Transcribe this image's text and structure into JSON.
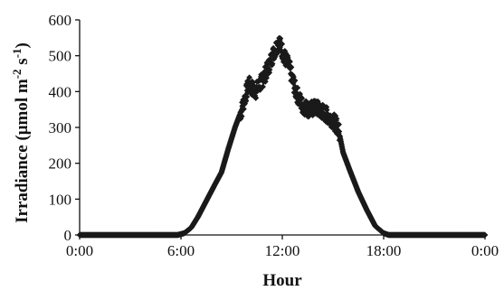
{
  "chart_data": {
    "type": "scatter",
    "title": "",
    "xlabel": "Hour",
    "ylabel": "Irradiance (μmol m-2 s-1)",
    "ylabel_parts": {
      "main": "Irradiance (μmol m",
      "sup1": "-2",
      "mid": " s",
      "sup2": "-1",
      "end": ")"
    },
    "xlim": [
      0,
      24
    ],
    "ylim": [
      0,
      600
    ],
    "xticks": [
      0,
      6,
      12,
      18,
      24
    ],
    "xtick_labels": [
      "0:00",
      "6:00",
      "12:00",
      "18:00",
      "0:00"
    ],
    "yticks": [
      0,
      100,
      200,
      300,
      400,
      500,
      600
    ],
    "ytick_labels": [
      "0",
      "100",
      "200",
      "300",
      "400",
      "500",
      "600"
    ],
    "grid": false,
    "legend": "none",
    "marker": "diamond",
    "color": "#1a1a1a",
    "profile": [
      [
        0.0,
        0
      ],
      [
        5.8,
        0
      ],
      [
        6.2,
        5
      ],
      [
        6.6,
        20
      ],
      [
        7.0,
        50
      ],
      [
        7.5,
        95
      ],
      [
        8.0,
        140
      ],
      [
        8.4,
        175
      ],
      [
        8.8,
        240
      ],
      [
        9.2,
        300
      ],
      [
        9.6,
        350
      ],
      [
        10.0,
        420
      ],
      [
        10.4,
        400
      ],
      [
        10.8,
        430
      ],
      [
        11.2,
        470
      ],
      [
        11.5,
        510
      ],
      [
        11.8,
        540
      ],
      [
        12.1,
        500
      ],
      [
        12.4,
        470
      ],
      [
        12.8,
        400
      ],
      [
        13.2,
        360
      ],
      [
        13.6,
        350
      ],
      [
        14.0,
        355
      ],
      [
        14.5,
        340
      ],
      [
        15.0,
        320
      ],
      [
        15.3,
        300
      ],
      [
        15.6,
        230
      ],
      [
        16.0,
        180
      ],
      [
        16.5,
        120
      ],
      [
        17.0,
        70
      ],
      [
        17.5,
        25
      ],
      [
        18.0,
        5
      ],
      [
        18.3,
        0
      ],
      [
        24.0,
        0
      ]
    ],
    "noise_windows": [
      [
        9.5,
        15.4,
        45
      ]
    ]
  }
}
